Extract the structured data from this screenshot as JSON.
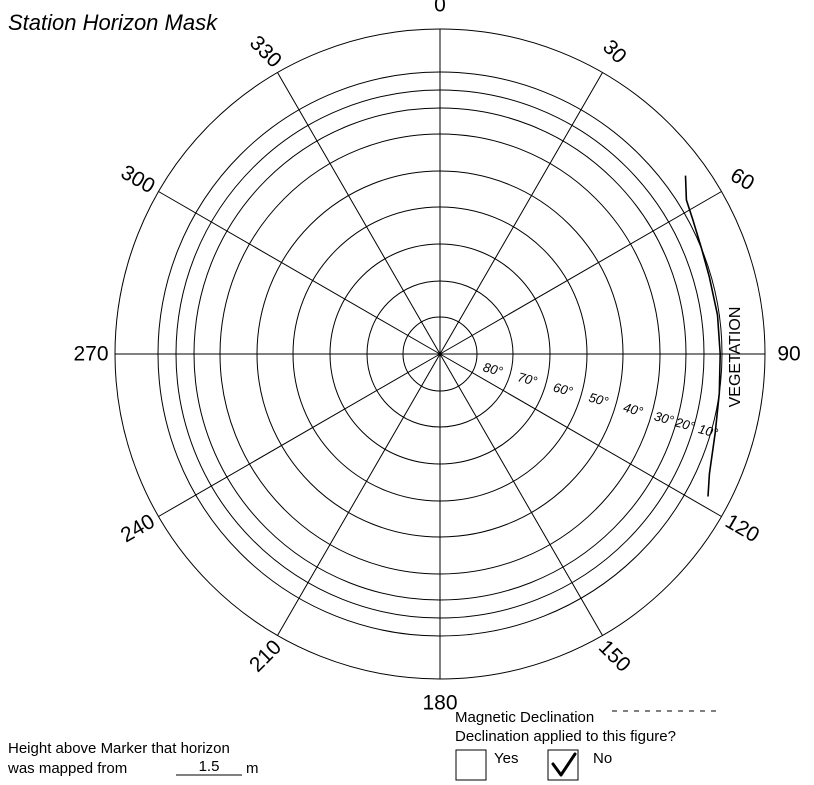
{
  "title": "Station Horizon Mask",
  "azimuth_labels": [
    "0",
    "30",
    "60",
    "90",
    "120",
    "150",
    "180",
    "210",
    "240",
    "270",
    "300",
    "330"
  ],
  "elevation_labels": [
    "80°",
    "70°",
    "60°",
    "50°",
    "40°",
    "30°",
    "20°",
    "10°"
  ],
  "vegetation_label": "VEGETATION",
  "height_text_line1": "Height above Marker that horizon",
  "height_text_prefix": "was mapped from",
  "height_value": "1.5",
  "height_unit": "m",
  "magnetic_declination_label": "Magnetic Declination",
  "declination_question": "Declination applied to this figure?",
  "yes_label": "Yes",
  "no_label": "No",
  "yes_checked": false,
  "no_checked": true,
  "horizon_profile": [
    {
      "azimuth": 54,
      "elevation": 5
    },
    {
      "azimuth": 58,
      "elevation": 8
    },
    {
      "azimuth": 62,
      "elevation": 9
    },
    {
      "azimuth": 68,
      "elevation": 10
    },
    {
      "azimuth": 74,
      "elevation": 11
    },
    {
      "azimuth": 82,
      "elevation": 11
    },
    {
      "azimuth": 90,
      "elevation": 11
    },
    {
      "azimuth": 98,
      "elevation": 10
    },
    {
      "azimuth": 106,
      "elevation": 9
    },
    {
      "azimuth": 114,
      "elevation": 7
    },
    {
      "azimuth": 118,
      "elevation": 5
    }
  ]
}
